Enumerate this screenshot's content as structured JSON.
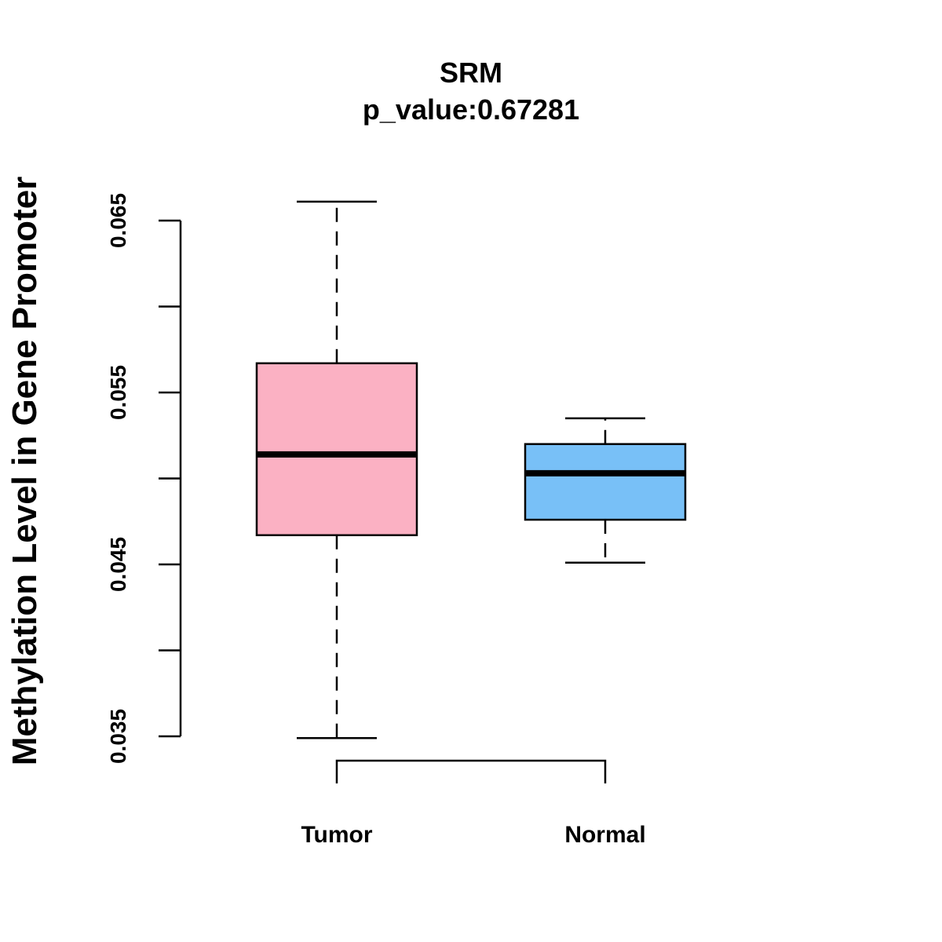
{
  "chart_data": {
    "type": "boxplot",
    "title": "SRM",
    "subtitle": "p_value:0.67281",
    "xlabel": "",
    "ylabel": "Methylation Level in Gene Promoter",
    "ylim": [
      0.035,
      0.065
    ],
    "y_ticks": [
      0.035,
      0.04,
      0.045,
      0.05,
      0.055,
      0.06,
      0.065
    ],
    "y_tick_labels": [
      "0.035",
      "",
      "0.045",
      "",
      "0.055",
      "",
      "0.065"
    ],
    "grid": false,
    "legend": "none",
    "categories": [
      "Tumor",
      "Normal"
    ],
    "boxes": [
      {
        "name": "Tumor",
        "whisker_low": 0.0349,
        "q1": 0.0467,
        "median": 0.0514,
        "q3": 0.0567,
        "whisker_high": 0.0661,
        "color": "#FBB1C3"
      },
      {
        "name": "Normal",
        "whisker_low": 0.0451,
        "q1": 0.0476,
        "median": 0.0503,
        "q3": 0.052,
        "whisker_high": 0.0535,
        "color": "#78C0F7"
      }
    ],
    "significance_bracket": {
      "from": "Tumor",
      "to": "Normal",
      "label": ""
    }
  }
}
